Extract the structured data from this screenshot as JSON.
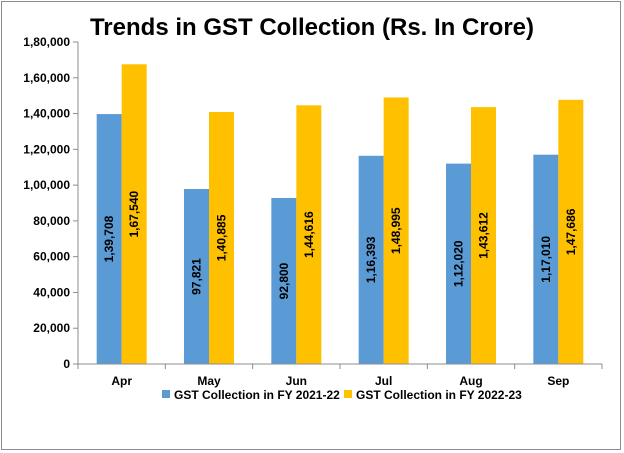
{
  "chart_data": {
    "type": "bar",
    "title": "Trends in GST Collection (Rs. In Crore)",
    "xlabel": "",
    "ylabel": "",
    "categories": [
      "Apr",
      "May",
      "Jun",
      "Jul",
      "Aug",
      "Sep"
    ],
    "series": [
      {
        "name": "GST Collection in FY 2021-22",
        "color": "#5B9BD5",
        "values": [
          139708,
          97821,
          92800,
          116393,
          112020,
          117010
        ],
        "labels": [
          "1,39,708",
          "97,821",
          "92,800",
          "1,16,393",
          "1,12,020",
          "1,17,010"
        ]
      },
      {
        "name": "GST Collection in FY 2022-23",
        "color": "#FFC000",
        "values": [
          167540,
          140885,
          144616,
          148995,
          143612,
          147686
        ],
        "labels": [
          "1,67,540",
          "1,40,885",
          "1,44,616",
          "1,48,995",
          "1,43,612",
          "1,47,686"
        ]
      }
    ],
    "ylim": [
      0,
      180000
    ],
    "yticks": [
      0,
      20000,
      40000,
      60000,
      80000,
      100000,
      120000,
      140000,
      160000,
      180000
    ],
    "ytick_labels": [
      "0",
      "20,000",
      "40,000",
      "60,000",
      "80,000",
      "1,00,000",
      "1,20,000",
      "1,40,000",
      "1,60,000",
      "1,80,000"
    ],
    "grid": false,
    "legend": "bottom",
    "data_label_orientation": "vertical"
  }
}
